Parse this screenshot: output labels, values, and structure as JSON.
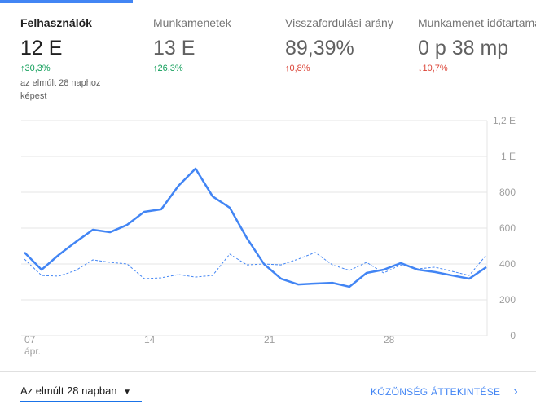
{
  "metrics": [
    {
      "title": "Felhasználók",
      "value": "12 E",
      "change": "30,3%",
      "direction": "up",
      "note": "az elmúlt 28 naphoz képest",
      "selected": true
    },
    {
      "title": "Munkamenetek",
      "value": "13 E",
      "change": "26,3%",
      "direction": "up"
    },
    {
      "title": "Visszafordulási arány",
      "value": "89,39%",
      "change": "0,8%",
      "direction": "up",
      "negative": true
    },
    {
      "title": "Munkamenet időtartama",
      "value": "0 p 38 mp",
      "change": "10,7%",
      "direction": "down",
      "negative": true
    }
  ],
  "chart_data": {
    "type": "line",
    "categories": [
      "07",
      null,
      null,
      null,
      null,
      null,
      null,
      "14",
      null,
      null,
      null,
      null,
      null,
      null,
      "21",
      null,
      null,
      null,
      null,
      null,
      null,
      "28",
      null,
      null,
      null,
      null,
      null,
      null
    ],
    "x_sublabel": "ápr.",
    "series": [
      {
        "color": "#4285f4",
        "style": "solid",
        "values": [
          464,
          368,
          450,
          523,
          591,
          577,
          618,
          691,
          705,
          836,
          932,
          777,
          714,
          545,
          400,
          318,
          286,
          291,
          295,
          273,
          350,
          368,
          405,
          368,
          355,
          336,
          318,
          382
        ]
      },
      {
        "color": "#4285f4",
        "style": "dashed",
        "values": [
          427,
          336,
          332,
          364,
          423,
          409,
          400,
          318,
          323,
          341,
          327,
          336,
          455,
          395,
          400,
          395,
          427,
          464,
          395,
          364,
          409,
          350,
          395,
          373,
          382,
          359,
          336,
          450
        ]
      }
    ],
    "ylim": [
      0,
      1200
    ],
    "yticks": [
      0,
      200,
      400,
      600,
      800,
      {
        "value": 1000,
        "label": "1 E"
      },
      {
        "value": 1200,
        "label": "1,2 E"
      }
    ],
    "grid": true
  },
  "footer": {
    "range": "Az elmúlt 28 napban",
    "link": "KÖZÖNSÉG ÁTTEKINTÉSE"
  }
}
